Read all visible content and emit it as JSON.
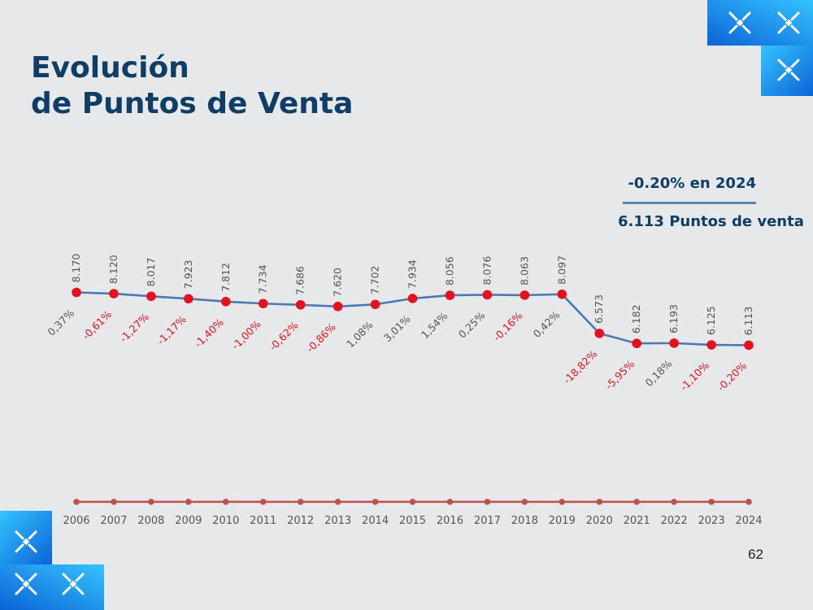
{
  "header": {
    "title_line1": "Evolución",
    "title_line2": "de Puntos de Venta"
  },
  "summary": {
    "change_text": "-0.20%  en 2024",
    "count_text": "6.113 Puntos de venta"
  },
  "page_number": "62",
  "colors": {
    "title": "#0f3d66",
    "line": "#4a7ab4",
    "marker": "#e8101a",
    "negative_label": "#e8101a",
    "positive_label": "#555555",
    "axis_line": "#c0504d",
    "background": "#e6e8ea",
    "deco_blue_light": "#35c4ff",
    "deco_blue_dark": "#0b63d6"
  },
  "icons": [
    "star-cross-icon"
  ],
  "chart_data": {
    "type": "line",
    "title": "Evolución de Puntos de Venta",
    "xlabel": "",
    "ylabel": "",
    "ylim": [
      5000,
      9000
    ],
    "grid": false,
    "categories": [
      "2006",
      "2007",
      "2008",
      "2009",
      "2010",
      "2011",
      "2012",
      "2013",
      "2014",
      "2015",
      "2016",
      "2017",
      "2018",
      "2019",
      "2020",
      "2021",
      "2022",
      "2023",
      "2024"
    ],
    "series": [
      {
        "name": "Puntos de venta",
        "values": [
          8170,
          8120,
          8017,
          7923,
          7812,
          7734,
          7686,
          7620,
          7702,
          7934,
          8056,
          8076,
          8063,
          8097,
          6573,
          6182,
          6193,
          6125,
          6113
        ],
        "value_labels": [
          "8.170",
          "8.120",
          "8.017",
          "7.923",
          "7.812",
          "7.734",
          "7.686",
          "7.620",
          "7.702",
          "7.934",
          "8.056",
          "8.076",
          "8.063",
          "8.097",
          "6.573",
          "6.182",
          "6.193",
          "6.125",
          "6.113"
        ]
      }
    ],
    "pct_change_labels": [
      "0,37%",
      "-0,61%",
      "-1,27%",
      "-1,17%",
      "-1,40%",
      "-1,00%",
      "-0,62%",
      "-0,86%",
      "1,08%",
      "3,01%",
      "1,54%",
      "0,25%",
      "-0,16%",
      "0,42%",
      "-18,82%",
      "-5,95%",
      "0,18%",
      "-1,10%",
      "-0,20%"
    ],
    "pct_change_values": [
      0.37,
      -0.61,
      -1.27,
      -1.17,
      -1.4,
      -1.0,
      -0.62,
      -0.86,
      1.08,
      3.01,
      1.54,
      0.25,
      -0.16,
      0.42,
      -18.82,
      -5.95,
      0.18,
      -1.1,
      -0.2
    ]
  }
}
